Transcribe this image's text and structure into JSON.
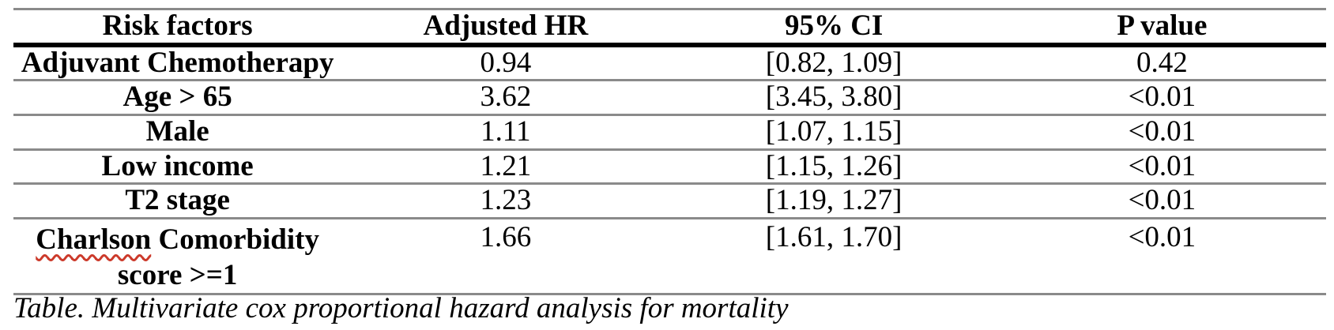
{
  "table": {
    "columns": [
      {
        "label": "Risk factors"
      },
      {
        "label": "Adjusted HR"
      },
      {
        "label": "95% CI"
      },
      {
        "label": "P value"
      }
    ],
    "rows": [
      {
        "factor": "Adjuvant Chemotherapy",
        "hr": "0.94",
        "ci": "[0.82, 1.09]",
        "p": "0.42"
      },
      {
        "factor": "Age > 65",
        "hr": "3.62",
        "ci": "[3.45, 3.80]",
        "p": "<0.01"
      },
      {
        "factor": "Male",
        "hr": "1.11",
        "ci": "[1.07, 1.15]",
        "p": "<0.01"
      },
      {
        "factor": "Low income",
        "hr": "1.21",
        "ci": "[1.15, 1.26]",
        "p": "<0.01"
      },
      {
        "factor": "T2 stage",
        "hr": "1.23",
        "ci": "[1.19, 1.27]",
        "p": "<0.01"
      },
      {
        "factor_line1_word1": "Charlson",
        "factor_line1_word2": " Comorbidity",
        "factor_line2": "score >=1",
        "hr": "1.66",
        "ci": "[1.61, 1.70]",
        "p": "<0.01"
      }
    ],
    "caption": "Table. Multivariate cox proportional hazard analysis for mortality"
  },
  "spellcheck": {
    "misspelled_word": "Charlson"
  },
  "colors": {
    "thin_border": "#8a8a8a",
    "thick_border": "#000000",
    "text": "#000000",
    "background": "#ffffff",
    "squiggle": "#cc3a2b"
  }
}
